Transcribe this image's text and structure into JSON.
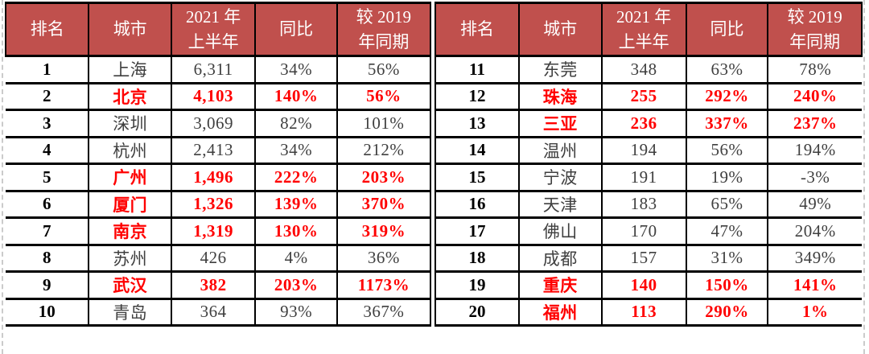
{
  "colors": {
    "header_bg": "#C0504D",
    "header_text": "#FFFFFF",
    "highlight_text": "#FF0000",
    "body_text": "#3F3F3F",
    "rank_text": "#000000",
    "border": "#000000",
    "page_break_dash": "#CBCBCB"
  },
  "chart_data": {
    "type": "table",
    "columns": [
      "排名",
      "城市",
      "2021年上半年",
      "同比",
      "较2019年同期"
    ],
    "column_headers_display": [
      "排名",
      "城市",
      "2021 年\n上半年",
      "同比",
      "较 2019\n年同期"
    ],
    "tables": [
      {
        "rows": [
          {
            "rank": "1",
            "city": "上海",
            "value_2021h1": "6,311",
            "yoy": "34%",
            "vs_2019": "56%",
            "highlight": false
          },
          {
            "rank": "2",
            "city": "北京",
            "value_2021h1": "4,103",
            "yoy": "140%",
            "vs_2019": "56%",
            "highlight": true
          },
          {
            "rank": "3",
            "city": "深圳",
            "value_2021h1": "3,069",
            "yoy": "82%",
            "vs_2019": "101%",
            "highlight": false
          },
          {
            "rank": "4",
            "city": "杭州",
            "value_2021h1": "2,413",
            "yoy": "34%",
            "vs_2019": "212%",
            "highlight": false
          },
          {
            "rank": "5",
            "city": "广州",
            "value_2021h1": "1,496",
            "yoy": "222%",
            "vs_2019": "203%",
            "highlight": true
          },
          {
            "rank": "6",
            "city": "厦门",
            "value_2021h1": "1,326",
            "yoy": "139%",
            "vs_2019": "370%",
            "highlight": true
          },
          {
            "rank": "7",
            "city": "南京",
            "value_2021h1": "1,319",
            "yoy": "130%",
            "vs_2019": "319%",
            "highlight": true
          },
          {
            "rank": "8",
            "city": "苏州",
            "value_2021h1": "426",
            "yoy": "4%",
            "vs_2019": "36%",
            "highlight": false
          },
          {
            "rank": "9",
            "city": "武汉",
            "value_2021h1": "382",
            "yoy": "203%",
            "vs_2019": "1173%",
            "highlight": true
          },
          {
            "rank": "10",
            "city": "青岛",
            "value_2021h1": "364",
            "yoy": "93%",
            "vs_2019": "367%",
            "highlight": false
          }
        ]
      },
      {
        "rows": [
          {
            "rank": "11",
            "city": "东莞",
            "value_2021h1": "348",
            "yoy": "63%",
            "vs_2019": "78%",
            "highlight": false
          },
          {
            "rank": "12",
            "city": "珠海",
            "value_2021h1": "255",
            "yoy": "292%",
            "vs_2019": "240%",
            "highlight": true
          },
          {
            "rank": "13",
            "city": "三亚",
            "value_2021h1": "236",
            "yoy": "337%",
            "vs_2019": "237%",
            "highlight": true
          },
          {
            "rank": "14",
            "city": "温州",
            "value_2021h1": "194",
            "yoy": "56%",
            "vs_2019": "194%",
            "highlight": false
          },
          {
            "rank": "15",
            "city": "宁波",
            "value_2021h1": "191",
            "yoy": "19%",
            "vs_2019": "-3%",
            "highlight": false
          },
          {
            "rank": "16",
            "city": "天津",
            "value_2021h1": "183",
            "yoy": "65%",
            "vs_2019": "49%",
            "highlight": false
          },
          {
            "rank": "17",
            "city": "佛山",
            "value_2021h1": "170",
            "yoy": "47%",
            "vs_2019": "204%",
            "highlight": false
          },
          {
            "rank": "18",
            "city": "成都",
            "value_2021h1": "157",
            "yoy": "31%",
            "vs_2019": "349%",
            "highlight": false
          },
          {
            "rank": "19",
            "city": "重庆",
            "value_2021h1": "140",
            "yoy": "150%",
            "vs_2019": "141%",
            "highlight": true
          },
          {
            "rank": "20",
            "city": "福州",
            "value_2021h1": "113",
            "yoy": "290%",
            "vs_2019": "1%",
            "highlight": true
          }
        ]
      }
    ]
  }
}
